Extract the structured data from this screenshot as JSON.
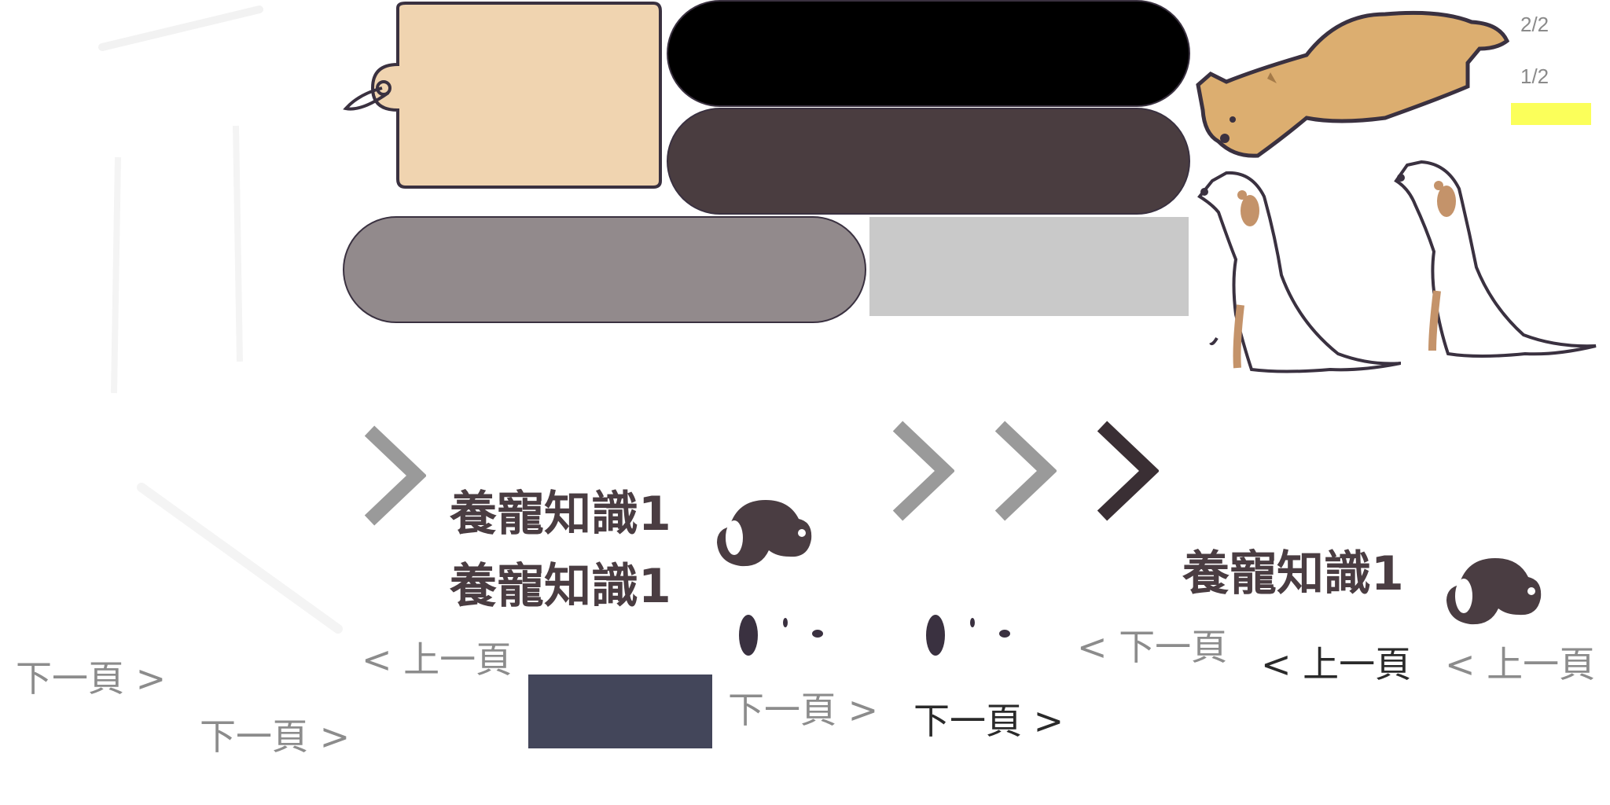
{
  "colors": {
    "tag_fill": "#f0d4b0",
    "outline": "#3a3140",
    "pill_black": "#000000",
    "pill_dark": "#4a3d40",
    "pill_gray": "#928a8c",
    "rect_light": "#c9c9c9",
    "rect_navy": "#43465a",
    "highlight_yellow": "#fbff5a",
    "chevron_gray": "#9a9a9a",
    "chevron_dark": "#3a2f34",
    "title_color": "#4a3d42"
  },
  "icons": {
    "chevron": "chevron-right-icon",
    "dog_face": "dog-face-icon",
    "paw_print": "paw-print-icon",
    "tag": "luggage-tag-icon"
  },
  "titles": {
    "knowledge_1": "養寵知識1",
    "knowledge_2": "養寵知識1",
    "knowledge_3": "養寵知識1"
  },
  "nav": {
    "next_1": "下一頁 >",
    "next_2": "下一頁 >",
    "next_3": "下一頁 >",
    "next_4": "下一頁 >",
    "prev_next_mixed": "< 下一頁",
    "prev_1": "< 上一頁",
    "prev_2": "< 上一頁",
    "prev_3": "< 上一頁"
  },
  "pagination": {
    "page_a": "2/2",
    "page_b": "1/2"
  }
}
